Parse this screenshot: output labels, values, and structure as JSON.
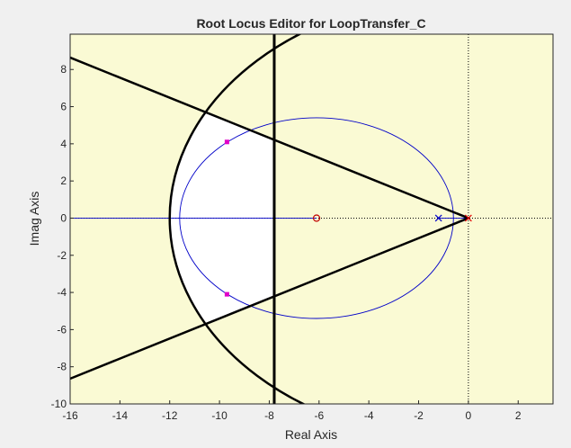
{
  "chart_data": {
    "type": "scatter",
    "title": "Root Locus Editor for LoopTransfer_C",
    "xlabel": "Real Axis",
    "ylabel": "Imag Axis",
    "xlim": [
      -16,
      3.4
    ],
    "ylim": [
      -10,
      9.9
    ],
    "xticks": [
      -16,
      -14,
      -12,
      -10,
      -8,
      -6,
      -4,
      -2,
      0,
      2
    ],
    "yticks": [
      -10,
      -8,
      -6,
      -4,
      -2,
      0,
      2,
      4,
      6,
      8
    ],
    "grid": false,
    "legend": "none",
    "colors": {
      "plot_background": "#fafad4",
      "constraint_region": "#ffffff",
      "locus": "#0000c8",
      "constraint_lines": "#000000",
      "closed_loop_poles": "#e000c8",
      "open_loop_pole_integrator": "#e00000",
      "zero": "#c00000"
    },
    "locus": {
      "circle_center": [
        -6.1,
        0
      ],
      "circle_radii": [
        5.5,
        5.4
      ],
      "real_axis_segment": [
        [
          -16,
          0
        ],
        [
          -6.1,
          0
        ]
      ],
      "segment_near_origin": [
        [
          -1.2,
          0
        ],
        [
          0,
          0
        ]
      ]
    },
    "open_loop_poles": [
      [
        0,
        0
      ],
      [
        -1.2,
        0
      ]
    ],
    "zeros": [
      [
        -6.1,
        0
      ]
    ],
    "closed_loop_poles": [
      [
        -9.7,
        4.1
      ],
      [
        -9.7,
        -4.1
      ]
    ],
    "constraints": {
      "settling_time_boundary_x": -7.8,
      "damping_lines_slope": 0.54,
      "natural_frequency_radius": 12
    }
  }
}
